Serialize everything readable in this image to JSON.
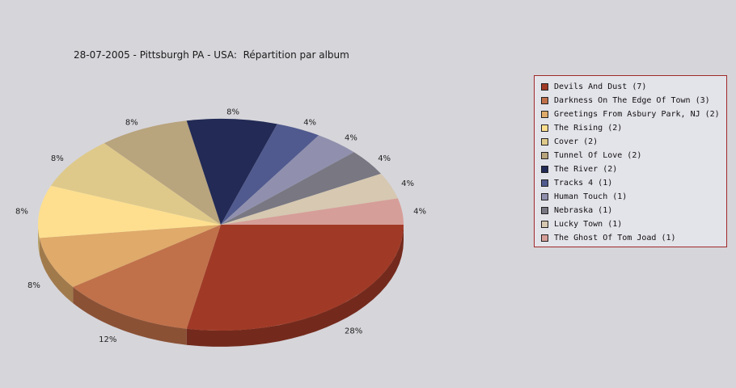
{
  "chart_data": {
    "type": "pie",
    "title": "28-07-2005 - Pittsburgh PA - USA:  Répartition par album",
    "slices": [
      {
        "label": "Devils And Dust (7)",
        "value": 7,
        "pct_label": "28%",
        "color": "#a03a27"
      },
      {
        "label": "Darkness On The Edge Of Town (3)",
        "value": 3,
        "pct_label": "12%",
        "color": "#c0714a"
      },
      {
        "label": "Greetings From Asbury Park, NJ (2)",
        "value": 2,
        "pct_label": "8%",
        "color": "#dfaa6a"
      },
      {
        "label": "The Rising (2)",
        "value": 2,
        "pct_label": "8%",
        "color": "#fddf8f"
      },
      {
        "label": "Cover (2)",
        "value": 2,
        "pct_label": "8%",
        "color": "#dec98a"
      },
      {
        "label": "Tunnel Of Love (2)",
        "value": 2,
        "pct_label": "8%",
        "color": "#b8a47d"
      },
      {
        "label": "The River (2)",
        "value": 2,
        "pct_label": "8%",
        "color": "#222a55"
      },
      {
        "label": "Tracks 4 (1)",
        "value": 1,
        "pct_label": "4%",
        "color": "#505a8e"
      },
      {
        "label": "Human Touch (1)",
        "value": 1,
        "pct_label": "4%",
        "color": "#9090ae"
      },
      {
        "label": "Nebraska (1)",
        "value": 1,
        "pct_label": "4%",
        "color": "#787782"
      },
      {
        "label": "Lucky Town (1)",
        "value": 1,
        "pct_label": "4%",
        "color": "#d6c8b1"
      },
      {
        "label": "The Ghost Of Tom Joad (1)",
        "value": 1,
        "pct_label": "4%",
        "color": "#d69e98"
      }
    ],
    "legend_position": "right"
  }
}
